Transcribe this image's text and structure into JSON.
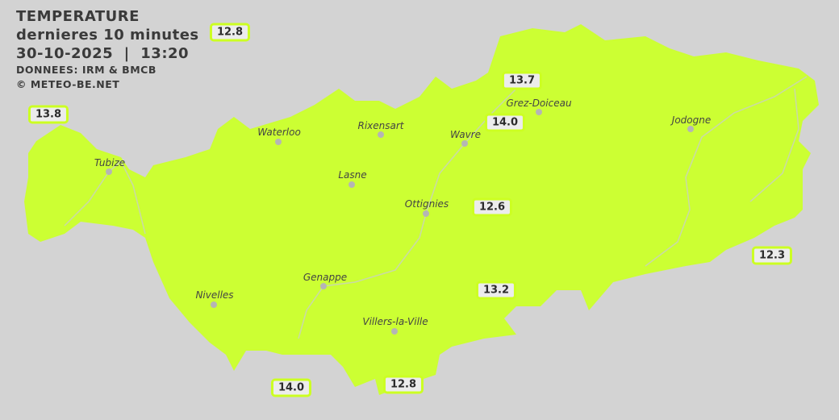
{
  "header": {
    "title": "TEMPERATURE",
    "subtitle": "dernieres 10 minutes",
    "datetime": "30-10-2025  |  13:20",
    "source": "DONNEES: IRM & BMCB",
    "copyright": "© METEO-BE.NET"
  },
  "colors": {
    "background": "#d3d3d3",
    "region_fill": "#ccff33",
    "badge_border": "#ccff22",
    "river": "#c8d8b0"
  },
  "towns": [
    {
      "name": "Tubize"
    },
    {
      "name": "Waterloo"
    },
    {
      "name": "Rixensart"
    },
    {
      "name": "Wavre"
    },
    {
      "name": "Grez-Doiceau"
    },
    {
      "name": "Jodogne"
    },
    {
      "name": "Lasne"
    },
    {
      "name": "Ottignies"
    },
    {
      "name": "Genappe"
    },
    {
      "name": "Nivelles"
    },
    {
      "name": "Villers-la-Ville"
    }
  ],
  "readings": [
    "12.8",
    "13.8",
    "13.7",
    "14.0",
    "12.6",
    "12.3",
    "13.2",
    "14.0",
    "12.8"
  ]
}
